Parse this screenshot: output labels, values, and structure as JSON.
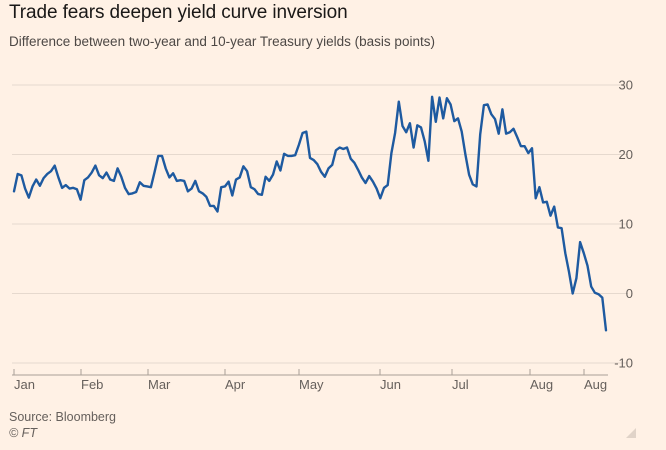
{
  "title": "Trade fears deepen yield curve inversion",
  "subtitle": "Difference between two-year and 10-year Treasury yields (basis points)",
  "source": "Source: Bloomberg",
  "credit": "© FT",
  "colors": {
    "background": "#fff1e5",
    "line": "#1e5aa0",
    "grid": "#e6d9ce",
    "tick_text": "#66605c",
    "axis": "#a89f98"
  },
  "chart_data": {
    "type": "line",
    "title": "Trade fears deepen yield curve inversion",
    "subtitle": "Difference between two-year and 10-year Treasury yields (basis points)",
    "xlabel": "",
    "ylabel": "",
    "x_ticks": [
      "Jan",
      "Feb",
      "Mar",
      "Apr",
      "May",
      "Jun",
      "Jul",
      "Aug",
      "Aug"
    ],
    "y_ticks": [
      30,
      20,
      10,
      0,
      -10
    ],
    "ylim": [
      -10,
      30
    ],
    "grid": true,
    "y_axis_side": "right",
    "series": [
      {
        "values": [
          14.7,
          17.2,
          17.0,
          15.1,
          13.8,
          15.4,
          16.4,
          15.5,
          16.6,
          17.2,
          17.6,
          18.4,
          16.7,
          15.2,
          15.6,
          15.1,
          15.2,
          15.0,
          13.5,
          16.3,
          16.7,
          17.4,
          18.4,
          17.0,
          16.6,
          17.4,
          16.4,
          16.2,
          18.0,
          16.8,
          15.2,
          14.3,
          14.4,
          14.6,
          16.0,
          15.5,
          15.4,
          15.3,
          17.5,
          19.8,
          19.8,
          18.0,
          16.7,
          17.3,
          16.2,
          16.3,
          16.2,
          14.7,
          15.1,
          16.2,
          14.7,
          14.4,
          13.9,
          12.6,
          12.6,
          11.8,
          15.3,
          15.4,
          16.1,
          14.1,
          16.4,
          16.7,
          18.3,
          17.6,
          15.3,
          15.0,
          14.3,
          14.2,
          16.8,
          16.2,
          17.1,
          19.0,
          17.7,
          20.1,
          19.8,
          19.8,
          19.9,
          21.4,
          23.1,
          23.3,
          19.5,
          19.2,
          18.6,
          17.5,
          16.8,
          18.0,
          18.5,
          20.6,
          21.0,
          20.8,
          21.0,
          19.4,
          18.8,
          17.8,
          16.7,
          15.9,
          16.9,
          16.1,
          15.1,
          13.7,
          15.2,
          15.6,
          20.2,
          23.1,
          27.6,
          24.1,
          23.2,
          24.5,
          21.0,
          24.2,
          23.9,
          21.9,
          19.1,
          28.3,
          24.7,
          28.2,
          25.2,
          28.1,
          27.2,
          24.8,
          25.2,
          23.3,
          20.0,
          17.1,
          15.7,
          15.4,
          22.9,
          27.1,
          27.2,
          25.8,
          25.1,
          23.0,
          26.5,
          23.0,
          23.2,
          23.7,
          22.5,
          21.2,
          21.2,
          20.2,
          20.9,
          13.7,
          15.3,
          13.1,
          13.2,
          11.2,
          12.5,
          9.5,
          9.4,
          5.8,
          3.1,
          0.0,
          2.2,
          7.4,
          5.8,
          4.0,
          1.0,
          0.1,
          -0.1,
          -0.6,
          -5.3
        ]
      }
    ]
  }
}
